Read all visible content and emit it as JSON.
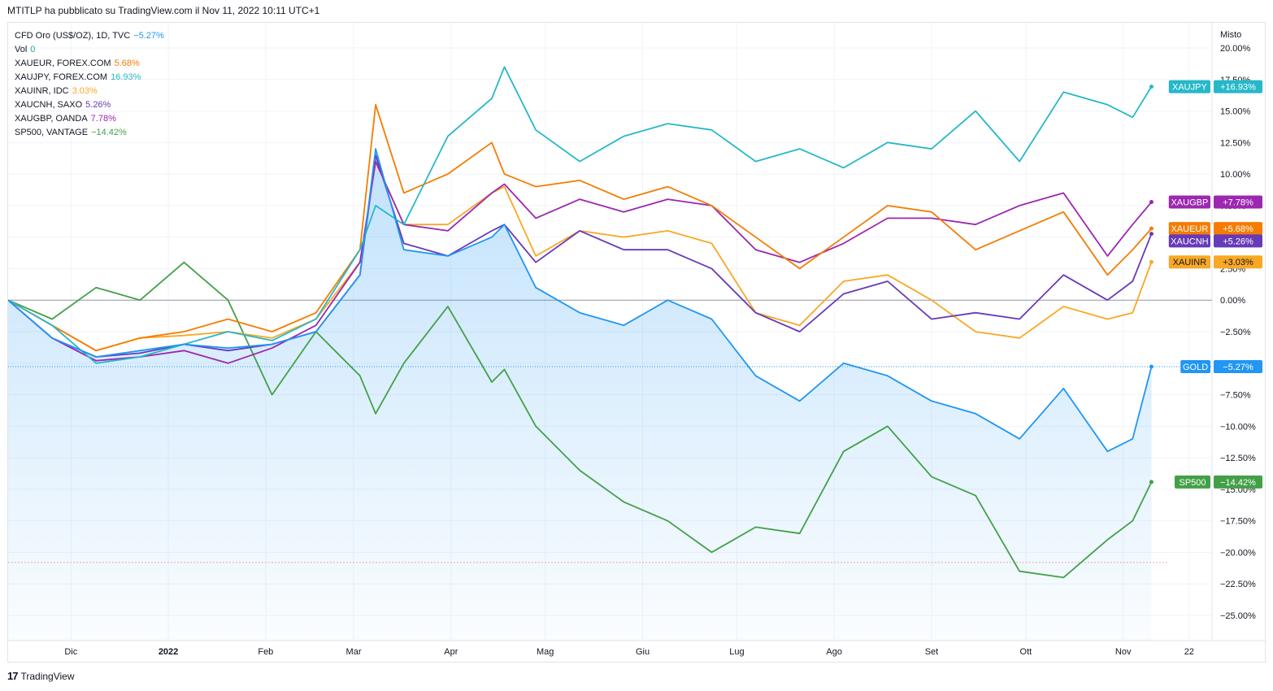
{
  "header": {
    "published": "MTITLP ha pubblicato su TradingView.com il Nov 11, 2022 10:11 UTC+1"
  },
  "footer": {
    "brand": "TradingView",
    "logo_icon": "tradingview-logo-icon"
  },
  "legend": [
    {
      "label": "CFD Oro (US$/OZ), 1D, TVC",
      "value": "−5.27%",
      "color": "#2196f3"
    },
    {
      "label": "Vol",
      "value": "0",
      "color": "#26a69a"
    },
    {
      "label": "XAUEUR, FOREX.COM",
      "value": "5.68%",
      "color": "#f57c00"
    },
    {
      "label": "XAUJPY, FOREX.COM",
      "value": "16.93%",
      "color": "#26b8c8"
    },
    {
      "label": "XAUINR, IDC",
      "value": "3.03%",
      "color": "#f9a825"
    },
    {
      "label": "XAUCNH, SAXO",
      "value": "5.26%",
      "color": "#673ab7"
    },
    {
      "label": "XAUGBP, OANDA",
      "value": "7.78%",
      "color": "#9c27b0"
    },
    {
      "label": "SP500, VANTAGE",
      "value": "−14.42%",
      "color": "#43a047"
    }
  ],
  "chart_data": {
    "type": "line",
    "scale_label": "Misto",
    "y_unit": "%",
    "ylim": [
      -27,
      22
    ],
    "y_ticks": [
      "20.00%",
      "17.50%",
      "15.00%",
      "12.50%",
      "10.00%",
      "7.50%",
      "5.00%",
      "2.50%",
      "0.00%",
      "−2.50%",
      "−5.00%",
      "−7.50%",
      "−10.00%",
      "−12.50%",
      "−15.00%",
      "−17.50%",
      "−20.00%",
      "−22.50%",
      "−25.00%"
    ],
    "y_tick_values": [
      20,
      17.5,
      15,
      12.5,
      10,
      7.5,
      5,
      2.5,
      0,
      -2.5,
      -5,
      -7.5,
      -10,
      -12.5,
      -15,
      -17.5,
      -20,
      -22.5,
      -25
    ],
    "x_ticks": [
      {
        "label": "Dic",
        "x": "2021-12-01"
      },
      {
        "label": "2022",
        "x": "2022-01-01"
      },
      {
        "label": "Feb",
        "x": "2022-02-01"
      },
      {
        "label": "Mar",
        "x": "2022-03-01"
      },
      {
        "label": "Apr",
        "x": "2022-04-01"
      },
      {
        "label": "Mag",
        "x": "2022-05-01"
      },
      {
        "label": "Giu",
        "x": "2022-06-01"
      },
      {
        "label": "Lug",
        "x": "2022-07-01"
      },
      {
        "label": "Ago",
        "x": "2022-08-01"
      },
      {
        "label": "Set",
        "x": "2022-09-01"
      },
      {
        "label": "Ott",
        "x": "2022-10-01"
      },
      {
        "label": "Nov",
        "x": "2022-11-01"
      },
      {
        "label": "22",
        "x": "2022-11-22"
      }
    ],
    "x_range": [
      "2021-11-11",
      "2022-11-28"
    ],
    "dates": [
      "2021-11-11",
      "2021-11-25",
      "2021-12-09",
      "2021-12-23",
      "2022-01-06",
      "2022-01-20",
      "2022-02-03",
      "2022-02-17",
      "2022-03-03",
      "2022-03-08",
      "2022-03-17",
      "2022-03-31",
      "2022-04-14",
      "2022-04-18",
      "2022-04-28",
      "2022-05-12",
      "2022-05-26",
      "2022-06-09",
      "2022-06-23",
      "2022-07-07",
      "2022-07-21",
      "2022-08-04",
      "2022-08-18",
      "2022-09-01",
      "2022-09-15",
      "2022-09-29",
      "2022-10-13",
      "2022-10-27",
      "2022-11-04",
      "2022-11-10"
    ],
    "series": [
      {
        "name": "XAUJPY",
        "label": "XAUJPY",
        "value_text": "+16.93%",
        "color": "#26b8c8",
        "values": [
          0,
          -2,
          -5,
          -4.5,
          -3.5,
          -2.5,
          -3.2,
          -1.5,
          4,
          7.5,
          6,
          13,
          16,
          18.5,
          13.5,
          11,
          13,
          14,
          13.5,
          11,
          12,
          10.5,
          12.5,
          12,
          15,
          11,
          16.5,
          15.5,
          14.5,
          16.93
        ]
      },
      {
        "name": "XAUGBP",
        "label": "XAUGBP",
        "value_text": "+7.78%",
        "color": "#9c27b0",
        "values": [
          0,
          -3,
          -4.8,
          -4.5,
          -4,
          -5,
          -3.8,
          -2,
          3,
          11,
          6,
          5.5,
          8.5,
          9.2,
          6.5,
          8,
          7,
          8,
          7.5,
          4,
          3,
          4.5,
          6.5,
          6.5,
          6,
          7.5,
          8.5,
          3.5,
          6,
          7.78
        ]
      },
      {
        "name": "XAUEUR",
        "label": "XAUEUR",
        "value_text": "+5.68%",
        "color": "#f57c00",
        "values": [
          0,
          -2,
          -4,
          -3,
          -2.5,
          -1.5,
          -2.5,
          -1,
          4,
          15.5,
          8.5,
          10,
          12.5,
          10,
          9,
          9.5,
          8,
          9,
          7.5,
          5,
          2.5,
          5,
          7.5,
          7,
          4,
          5.5,
          7,
          2,
          4,
          5.68
        ]
      },
      {
        "name": "XAUCNH",
        "label": "XAUCNH",
        "value_text": "+5.26%",
        "color": "#673ab7",
        "values": [
          0,
          -3,
          -4.5,
          -4.2,
          -3.5,
          -4,
          -3.5,
          -2.5,
          2,
          11.5,
          4.5,
          3.5,
          5.5,
          6,
          3,
          5.5,
          4,
          4,
          2.5,
          -1,
          -2.5,
          0.5,
          1.5,
          -1.5,
          -1,
          -1.5,
          2,
          0,
          1.5,
          5.26
        ]
      },
      {
        "name": "XAUINR",
        "label": "XAUINR",
        "value_text": "+3.03%",
        "color": "#f9a825",
        "values": [
          0,
          -2,
          -4,
          -3,
          -2.8,
          -2.5,
          -3,
          -1.5,
          3,
          11,
          6,
          6,
          8.5,
          9,
          3.5,
          5.5,
          5,
          5.5,
          4.5,
          -1,
          -2,
          1.5,
          2,
          0,
          -2.5,
          -3,
          -0.5,
          -1.5,
          -1,
          3.03
        ]
      },
      {
        "name": "GOLD",
        "label": "GOLD",
        "value_text": "−5.27%",
        "color": "#2196f3",
        "values": [
          0,
          -3,
          -4.5,
          -4,
          -3.5,
          -3.8,
          -3.5,
          -2.5,
          2,
          12,
          4,
          3.5,
          5,
          6,
          1,
          -1,
          -2,
          0,
          -1.5,
          -6,
          -8,
          -5,
          -6,
          -8,
          -9,
          -11,
          -7,
          -12,
          -11,
          -5.27
        ]
      },
      {
        "name": "SP500",
        "label": "SP500",
        "value_text": "−14.42%",
        "color": "#43a047",
        "values": [
          0,
          -1.5,
          1,
          0,
          3,
          0,
          -7.5,
          -2.5,
          -6,
          -9,
          -5,
          -0.5,
          -6.5,
          -5.5,
          -10,
          -13.5,
          -16,
          -17.5,
          -20,
          -18,
          -18.5,
          -12,
          -10,
          -14,
          -15.5,
          -21.5,
          -22,
          -19,
          -17.5,
          -14.42
        ]
      }
    ],
    "grid": true,
    "zero_line": true,
    "legend_position": "top-left"
  }
}
